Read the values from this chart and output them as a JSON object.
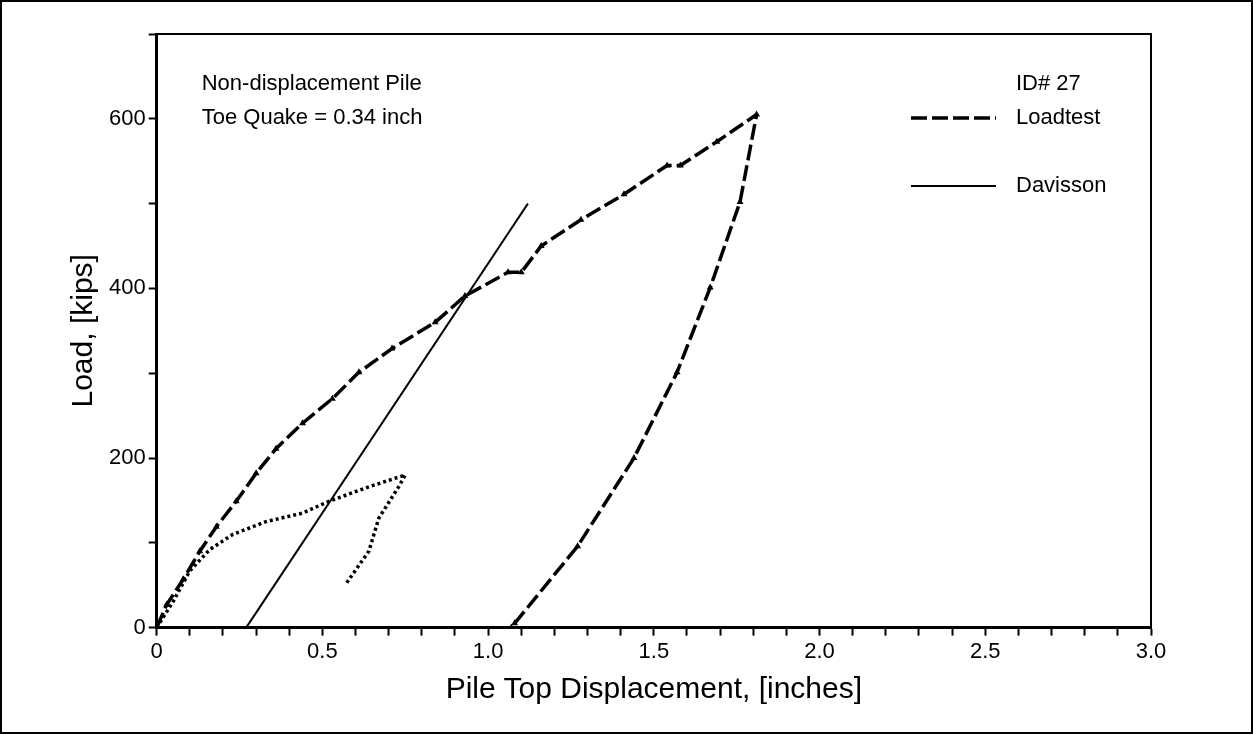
{
  "chart_data": {
    "type": "line",
    "xlabel": "Pile Top Displacement, [inches]",
    "ylabel": "Load, [kips]",
    "legend_title": "ID# 27",
    "legend": "top right",
    "grid": false,
    "annotations": [
      "Non-displacement Pile",
      "Toe Quake = 0.34 inch"
    ],
    "xlim": [
      0,
      3
    ],
    "ylim": [
      0,
      700
    ],
    "xticks": [
      0,
      {
        "value": 0.1,
        "label": null
      },
      {
        "value": 0.2,
        "label": null
      },
      {
        "value": 0.3,
        "label": null
      },
      {
        "value": 0.4,
        "label": null
      },
      {
        "value": 0.5,
        "label": "0.5"
      },
      {
        "value": 0.6,
        "label": null
      },
      {
        "value": 0.7,
        "label": null
      },
      {
        "value": 0.8,
        "label": null
      },
      {
        "value": 0.9,
        "label": null
      },
      {
        "value": 1,
        "label": "1.0"
      },
      {
        "value": 1.1,
        "label": null
      },
      {
        "value": 1.2,
        "label": null
      },
      {
        "value": 1.3,
        "label": null
      },
      {
        "value": 1.4,
        "label": null
      },
      {
        "value": 1.5,
        "label": "1.5"
      },
      {
        "value": 1.6,
        "label": null
      },
      {
        "value": 1.7,
        "label": null
      },
      {
        "value": 1.8,
        "label": null
      },
      {
        "value": 1.9,
        "label": null
      },
      {
        "value": 2,
        "label": "2.0"
      },
      {
        "value": 2.1,
        "label": null
      },
      {
        "value": 2.2,
        "label": null
      },
      {
        "value": 2.3,
        "label": null
      },
      {
        "value": 2.4,
        "label": null
      },
      {
        "value": 2.5,
        "label": "2.5"
      },
      {
        "value": 2.6,
        "label": null
      },
      {
        "value": 2.7,
        "label": null
      },
      {
        "value": 2.8,
        "label": null
      },
      {
        "value": 2.9,
        "label": null
      },
      {
        "value": 3,
        "label": "3.0"
      }
    ],
    "yticks": [
      0,
      {
        "value": 100,
        "label": null
      },
      200,
      {
        "value": 300,
        "label": null
      },
      400,
      {
        "value": 500,
        "label": null
      },
      600,
      {
        "value": 700,
        "label": null
      }
    ],
    "series": [
      {
        "name": "Loadtest",
        "color": "#000000",
        "marker": "triangle",
        "line_style": "dashed",
        "x": [
          0,
          0.03,
          0.08,
          0.13,
          0.18,
          0.24,
          0.3,
          0.36,
          0.44,
          0.53,
          0.61,
          0.71,
          0.84,
          0.93,
          1.06,
          1.1,
          1.16,
          1.28,
          1.41,
          1.54,
          1.58,
          1.69,
          1.81,
          1.76,
          1.67,
          1.57,
          1.44,
          1.27,
          1.08,
          1.07
        ],
        "values": [
          0,
          27,
          57,
          90,
          119,
          149,
          182,
          211,
          241,
          270,
          301,
          329,
          360,
          391,
          419,
          419,
          450,
          481,
          511,
          545,
          545,
          573,
          605,
          502,
          401,
          301,
          200,
          96,
          5,
          0
        ]
      },
      {
        "color": "#000000",
        "marker": "none",
        "line_style": "dotted",
        "x": [
          0,
          0.05,
          0.1,
          0.16,
          0.23,
          0.33,
          0.44,
          0.52,
          0.64,
          0.75,
          0.73,
          0.67,
          0.64,
          0.57
        ],
        "values": [
          0,
          31,
          67,
          92,
          110,
          125,
          135,
          149,
          166,
          180,
          166,
          129,
          90,
          51
        ]
      },
      {
        "name": "Davisson",
        "color": "#000000",
        "marker": "none",
        "line_style": "solid",
        "x": [
          0.27,
          1.12
        ],
        "values": [
          0,
          500
        ]
      }
    ]
  }
}
